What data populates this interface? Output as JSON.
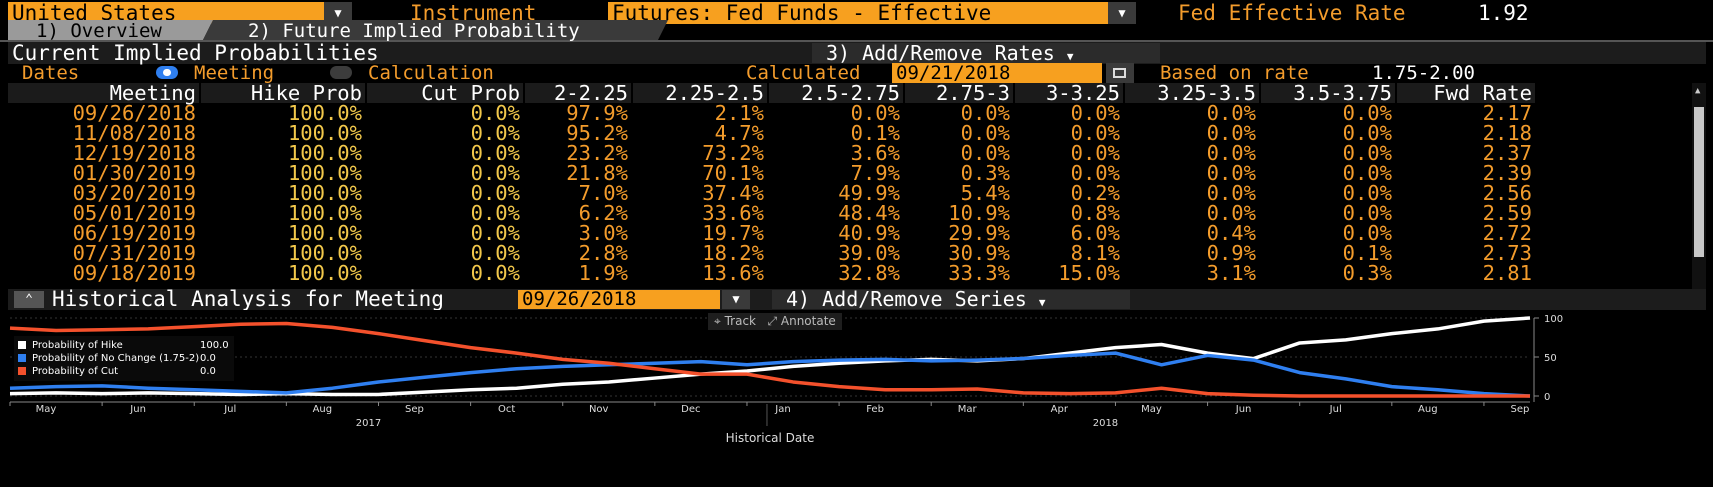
{
  "header": {
    "country": "United States",
    "instrument_label": "Instrument",
    "instrument_value": "Futures: Fed Funds - Effective",
    "rate_label": "Fed Effective Rate",
    "rate_value": "1.92"
  },
  "tabs": [
    {
      "label": "1) Overview"
    },
    {
      "label": "2) Future Implied Probability"
    }
  ],
  "probabilities": {
    "title": "Current Implied Probabilities",
    "add_rates_label": "3) Add/Remove Rates",
    "dates_label": "Dates",
    "option_meeting": "Meeting",
    "option_calculation": "Calculation",
    "calculated_label": "Calculated",
    "calculated_value": "09/21/2018",
    "based_label": "Based on rate",
    "based_value": "1.75-2.00"
  },
  "table": {
    "columns": [
      "Meeting",
      "Hike Prob",
      "Cut Prob",
      "2-2.25",
      "2.25-2.5",
      "2.5-2.75",
      "2.75-3",
      "3-3.25",
      "3.25-3.5",
      "3.5-3.75",
      "Fwd Rate"
    ],
    "rows": [
      [
        "09/26/2018",
        "100.0%",
        "0.0%",
        "97.9%",
        "2.1%",
        "0.0%",
        "0.0%",
        "0.0%",
        "0.0%",
        "0.0%",
        "2.17"
      ],
      [
        "11/08/2018",
        "100.0%",
        "0.0%",
        "95.2%",
        "4.7%",
        "0.1%",
        "0.0%",
        "0.0%",
        "0.0%",
        "0.0%",
        "2.18"
      ],
      [
        "12/19/2018",
        "100.0%",
        "0.0%",
        "23.2%",
        "73.2%",
        "3.6%",
        "0.0%",
        "0.0%",
        "0.0%",
        "0.0%",
        "2.37"
      ],
      [
        "01/30/2019",
        "100.0%",
        "0.0%",
        "21.8%",
        "70.1%",
        "7.9%",
        "0.3%",
        "0.0%",
        "0.0%",
        "0.0%",
        "2.39"
      ],
      [
        "03/20/2019",
        "100.0%",
        "0.0%",
        "7.0%",
        "37.4%",
        "49.9%",
        "5.4%",
        "0.2%",
        "0.0%",
        "0.0%",
        "2.56"
      ],
      [
        "05/01/2019",
        "100.0%",
        "0.0%",
        "6.2%",
        "33.6%",
        "48.4%",
        "10.9%",
        "0.8%",
        "0.0%",
        "0.0%",
        "2.59"
      ],
      [
        "06/19/2019",
        "100.0%",
        "0.0%",
        "3.0%",
        "19.7%",
        "40.9%",
        "29.9%",
        "6.0%",
        "0.4%",
        "0.0%",
        "2.72"
      ],
      [
        "07/31/2019",
        "100.0%",
        "0.0%",
        "2.8%",
        "18.2%",
        "39.0%",
        "30.9%",
        "8.1%",
        "0.9%",
        "0.1%",
        "2.73"
      ],
      [
        "09/18/2019",
        "100.0%",
        "0.0%",
        "1.9%",
        "13.6%",
        "32.8%",
        "33.3%",
        "15.0%",
        "3.1%",
        "0.3%",
        "2.81"
      ]
    ]
  },
  "historical": {
    "title": "Historical Analysis for Meeting",
    "meeting_value": "09/26/2018",
    "add_series_label": "4) Add/Remove Series",
    "track_label": "Track",
    "annotate_label": "Annotate"
  },
  "colors": {
    "accent": "#f39c2c",
    "hike": "#ffffff",
    "nochange": "#2f7ff0",
    "cut": "#f4512c"
  },
  "chart_data": {
    "type": "line",
    "xlabel": "Historical Date",
    "x_ticks": [
      "May",
      "Jun",
      "Jul",
      "Aug",
      "Sep",
      "Oct",
      "Nov",
      "Dec",
      "Jan",
      "Feb",
      "Mar",
      "Apr",
      "May",
      "Jun",
      "Jul",
      "Aug",
      "Sep"
    ],
    "year_labels": [
      "2017",
      "2018"
    ],
    "y_ticks": [
      "0",
      "50",
      "100"
    ],
    "ylim": [
      0,
      100
    ],
    "legend_placement": "top-left",
    "x_index": [
      0,
      0.5,
      1,
      1.5,
      2,
      2.5,
      3,
      3.5,
      4,
      4.5,
      5,
      5.5,
      6,
      6.5,
      7,
      7.5,
      8,
      8.5,
      9,
      9.5,
      10,
      10.5,
      11,
      11.5,
      12,
      12.5,
      13,
      13.5,
      14,
      14.5,
      15,
      15.5,
      16,
      16.5
    ],
    "series": [
      {
        "name": "Probability of Hike",
        "legend_value": "100.0",
        "color": "#ffffff",
        "values": [
          3,
          4,
          3,
          4,
          3,
          2,
          3,
          2,
          2,
          5,
          8,
          10,
          15,
          18,
          23,
          28,
          32,
          38,
          42,
          45,
          47,
          45,
          48,
          55,
          62,
          66,
          55,
          48,
          68,
          72,
          80,
          86,
          96,
          100
        ]
      },
      {
        "name": "Probability of No Change (1.75-2)",
        "legend_value": "0.0",
        "color": "#2f7ff0",
        "values": [
          10,
          12,
          13,
          10,
          8,
          6,
          4,
          10,
          18,
          24,
          30,
          35,
          38,
          40,
          42,
          44,
          40,
          44,
          46,
          47,
          45,
          46,
          48,
          52,
          55,
          40,
          52,
          46,
          30,
          22,
          12,
          8,
          3,
          0
        ]
      },
      {
        "name": "Probability of Cut",
        "legend_value": "0.0",
        "color": "#f4512c",
        "values": [
          87,
          84,
          85,
          86,
          89,
          92,
          93,
          88,
          80,
          71,
          62,
          55,
          47,
          42,
          35,
          28,
          28,
          18,
          12,
          8,
          8,
          9,
          4,
          3,
          4,
          10,
          3,
          1,
          0,
          0,
          0,
          0,
          0,
          0
        ]
      }
    ]
  }
}
